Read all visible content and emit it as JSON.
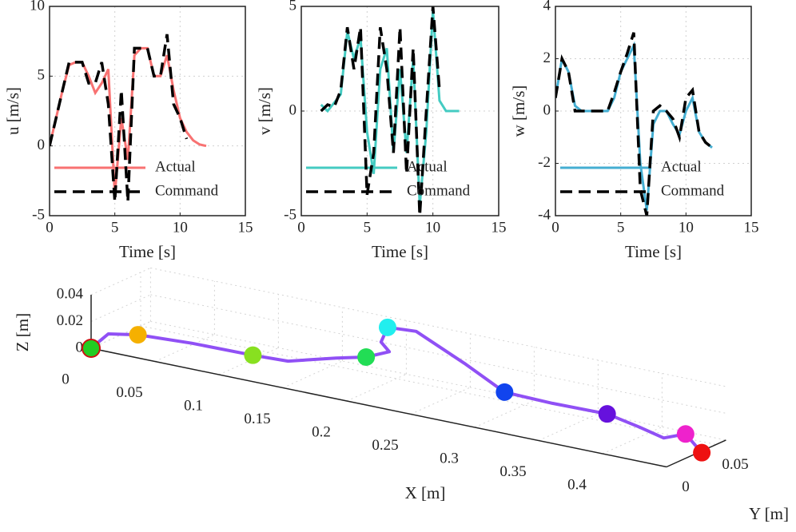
{
  "chart_data": [
    {
      "type": "line",
      "xlabel": "Time [s]",
      "ylabel": "u [m/s]",
      "x": [
        0,
        0.5,
        1,
        1.5,
        2,
        2.5,
        3,
        3.5,
        4,
        4.5,
        5,
        5.5,
        6,
        6.5,
        7,
        7.5,
        8,
        8.5,
        9,
        9.5,
        10,
        10.5,
        11,
        11.5,
        12
      ],
      "series": [
        {
          "name": "Actual",
          "color": "#f87272",
          "dashed": false,
          "values": [
            0,
            2,
            4,
            5.8,
            6,
            6,
            5,
            3.8,
            4.5,
            5.5,
            -3.5,
            2,
            -1,
            6.5,
            7,
            7,
            5,
            5,
            6.5,
            4,
            2,
            1,
            0.4,
            0.1,
            0
          ]
        },
        {
          "name": "Command",
          "color": "#000000",
          "dashed": true,
          "values": [
            0,
            2,
            4,
            6,
            6,
            6,
            4.5,
            4.5,
            6,
            3,
            -4,
            4,
            -4,
            7,
            7,
            7,
            5,
            5,
            8,
            3,
            2,
            0.5,
            null,
            null,
            null
          ]
        }
      ],
      "xlim": [
        0,
        15
      ],
      "xticks": [
        0,
        5,
        10,
        15
      ],
      "ylim": [
        -5,
        10
      ],
      "yticks": [
        -5,
        0,
        5,
        10
      ],
      "grid": true,
      "legend": "lower left"
    },
    {
      "type": "line",
      "xlabel": "Time [s]",
      "ylabel": "v [m/s]",
      "x": [
        0,
        0.5,
        1,
        1.5,
        2,
        2.5,
        3,
        3.5,
        4,
        4.5,
        5,
        5.5,
        6,
        6.5,
        7,
        7.5,
        8,
        8.5,
        9,
        9.5,
        10,
        10.5,
        11,
        11.5,
        12
      ],
      "series": [
        {
          "name": "Actual",
          "color": "#44cbc2",
          "dashed": false,
          "values": [
            null,
            null,
            null,
            0.3,
            0,
            0.4,
            0.8,
            3.8,
            2.5,
            3.5,
            -1,
            -3,
            2,
            3,
            -2,
            2,
            -2,
            2.5,
            -4.5,
            -1,
            4.8,
            0.5,
            0,
            0,
            0
          ]
        },
        {
          "name": "Command",
          "color": "#000000",
          "dashed": true,
          "values": [
            null,
            null,
            null,
            0,
            0.3,
            0.2,
            1,
            4,
            2,
            4,
            -4,
            -2,
            4,
            2,
            -2,
            4,
            -3,
            3,
            -5,
            0,
            5,
            1,
            null,
            null,
            null
          ]
        }
      ],
      "xlim": [
        0,
        15
      ],
      "xticks": [
        0,
        5,
        10,
        15
      ],
      "ylim": [
        -5,
        5
      ],
      "yticks": [
        -5,
        0,
        5
      ],
      "grid": true,
      "legend": "lower left"
    },
    {
      "type": "line",
      "xlabel": "Time [s]",
      "ylabel": "w [m/s]",
      "x": [
        0,
        0.5,
        1,
        1.5,
        2,
        2.5,
        3,
        3.5,
        4,
        4.5,
        5,
        5.5,
        6,
        6.5,
        7,
        7.5,
        8,
        8.5,
        9,
        9.5,
        10,
        10.5,
        11,
        11.5,
        12
      ],
      "series": [
        {
          "name": "Actual",
          "color": "#44aed2",
          "dashed": false,
          "values": [
            0.5,
            2,
            1.5,
            0.2,
            0,
            0,
            0,
            0,
            0,
            0.5,
            1.5,
            2,
            2.5,
            -2,
            -3.8,
            -0.5,
            0,
            0,
            -0.5,
            -0.9,
            0,
            0.5,
            -0.8,
            -1.2,
            -1.4
          ]
        },
        {
          "name": "Command",
          "color": "#000000",
          "dashed": true,
          "values": [
            0.5,
            2,
            1.5,
            0,
            0,
            0,
            0,
            0,
            0,
            0.7,
            1.5,
            2.2,
            3,
            -3,
            -4,
            0,
            0.2,
            0,
            -0.3,
            -1,
            0.5,
            0.8,
            -0.8,
            -1.2,
            -1.4
          ]
        }
      ],
      "xlim": [
        0,
        15
      ],
      "xticks": [
        0,
        5,
        10,
        15
      ],
      "ylim": [
        -4,
        4
      ],
      "yticks": [
        -4,
        -2,
        0,
        2,
        4
      ],
      "grid": true,
      "legend": "lower left"
    },
    {
      "type": "line3d",
      "xlabel": "X [m]",
      "ylabel": "Y [m]",
      "zlabel": "Z [m]",
      "path": {
        "color": "#9050f5",
        "x": [
          0,
          0.008,
          0.025,
          0.064,
          0.111,
          0.137,
          0.159,
          0.174,
          0.196,
          0.188,
          0.19,
          0.21,
          0.25,
          0.29,
          0.329,
          0.371,
          0.404,
          0.43,
          0.437,
          0.452
        ],
        "y": [
          0,
          0.007,
          0.015,
          0.019,
          0.02,
          0.022,
          0.042,
          0.053,
          0.048,
          0.05,
          0.054,
          0.057,
          0.054,
          0.043,
          0.041,
          0.042,
          0.032,
          0.023,
          0.036,
          0.033
        ],
        "z": [
          0,
          0.01,
          0.01,
          0.01,
          0.01,
          0.01,
          0.01,
          0.01,
          0.02,
          0.025,
          0.035,
          0.035,
          0.02,
          0.01,
          0.01,
          0.01,
          0.01,
          0.01,
          0.01,
          0
        ]
      },
      "markers": {
        "x": [
          0,
          0.025,
          0.111,
          0.174,
          0.19,
          0.29,
          0.371,
          0.437,
          0.452
        ],
        "y": [
          0,
          0.015,
          0.02,
          0.053,
          0.054,
          0.043,
          0.042,
          0.036,
          0.033
        ],
        "z": [
          0,
          0.01,
          0.01,
          0.01,
          0.035,
          0.01,
          0.01,
          0.01,
          0
        ],
        "colors": [
          "#22cc22",
          "#f5b000",
          "#88e020",
          "#22dd55",
          "#22eeee",
          "#1144ee",
          "#6611dd",
          "#ee22cc",
          "#ee1111"
        ],
        "start_edge_color": "#cc1111"
      },
      "xlim": [
        0,
        0.45
      ],
      "ylim": [
        0,
        0.06
      ],
      "zlim": [
        0,
        0.04
      ],
      "xticks": [
        0,
        0.05,
        0.1,
        0.15,
        0.2,
        0.25,
        0.3,
        0.35,
        0.4
      ],
      "yticks": [
        0,
        0.05
      ],
      "zticks": [
        0,
        0.02,
        0.04
      ],
      "grid": true
    }
  ]
}
